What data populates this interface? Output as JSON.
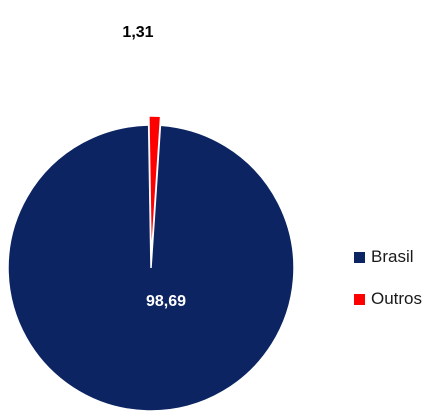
{
  "chart_data": {
    "type": "pie",
    "categories": [
      "Brasil",
      "Outros"
    ],
    "values": [
      98.69,
      1.31
    ],
    "data_labels": [
      "98,69",
      "1,31"
    ],
    "colors": [
      "#0d2463",
      "#ff0000"
    ],
    "title": "",
    "legend_position": "right",
    "exploded_slice": "Outros"
  }
}
